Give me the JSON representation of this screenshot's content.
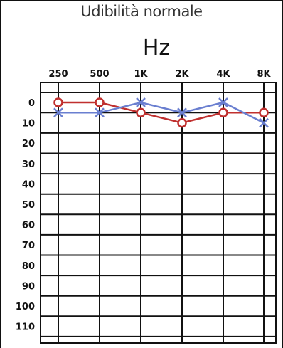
{
  "chart_data": {
    "type": "line",
    "title": "Udibilità normale",
    "xlabel": "Hz",
    "ylabel": "",
    "categories": [
      "250",
      "500",
      "1K",
      "2K",
      "4K",
      "8K"
    ],
    "y_ticks": [
      "0",
      "10",
      "20",
      "30",
      "40",
      "50",
      "60",
      "70",
      "80",
      "90",
      "100",
      "110"
    ],
    "ylim": [
      -5,
      120
    ],
    "y_inverted": true,
    "grid": true,
    "series": [
      {
        "marker": "o",
        "color": "#c0302f",
        "values": [
          0,
          0,
          5,
          10,
          5,
          5
        ]
      },
      {
        "marker": "x",
        "color": "#6a7fd0",
        "values": [
          5,
          5,
          0,
          5,
          0,
          10
        ]
      }
    ]
  }
}
